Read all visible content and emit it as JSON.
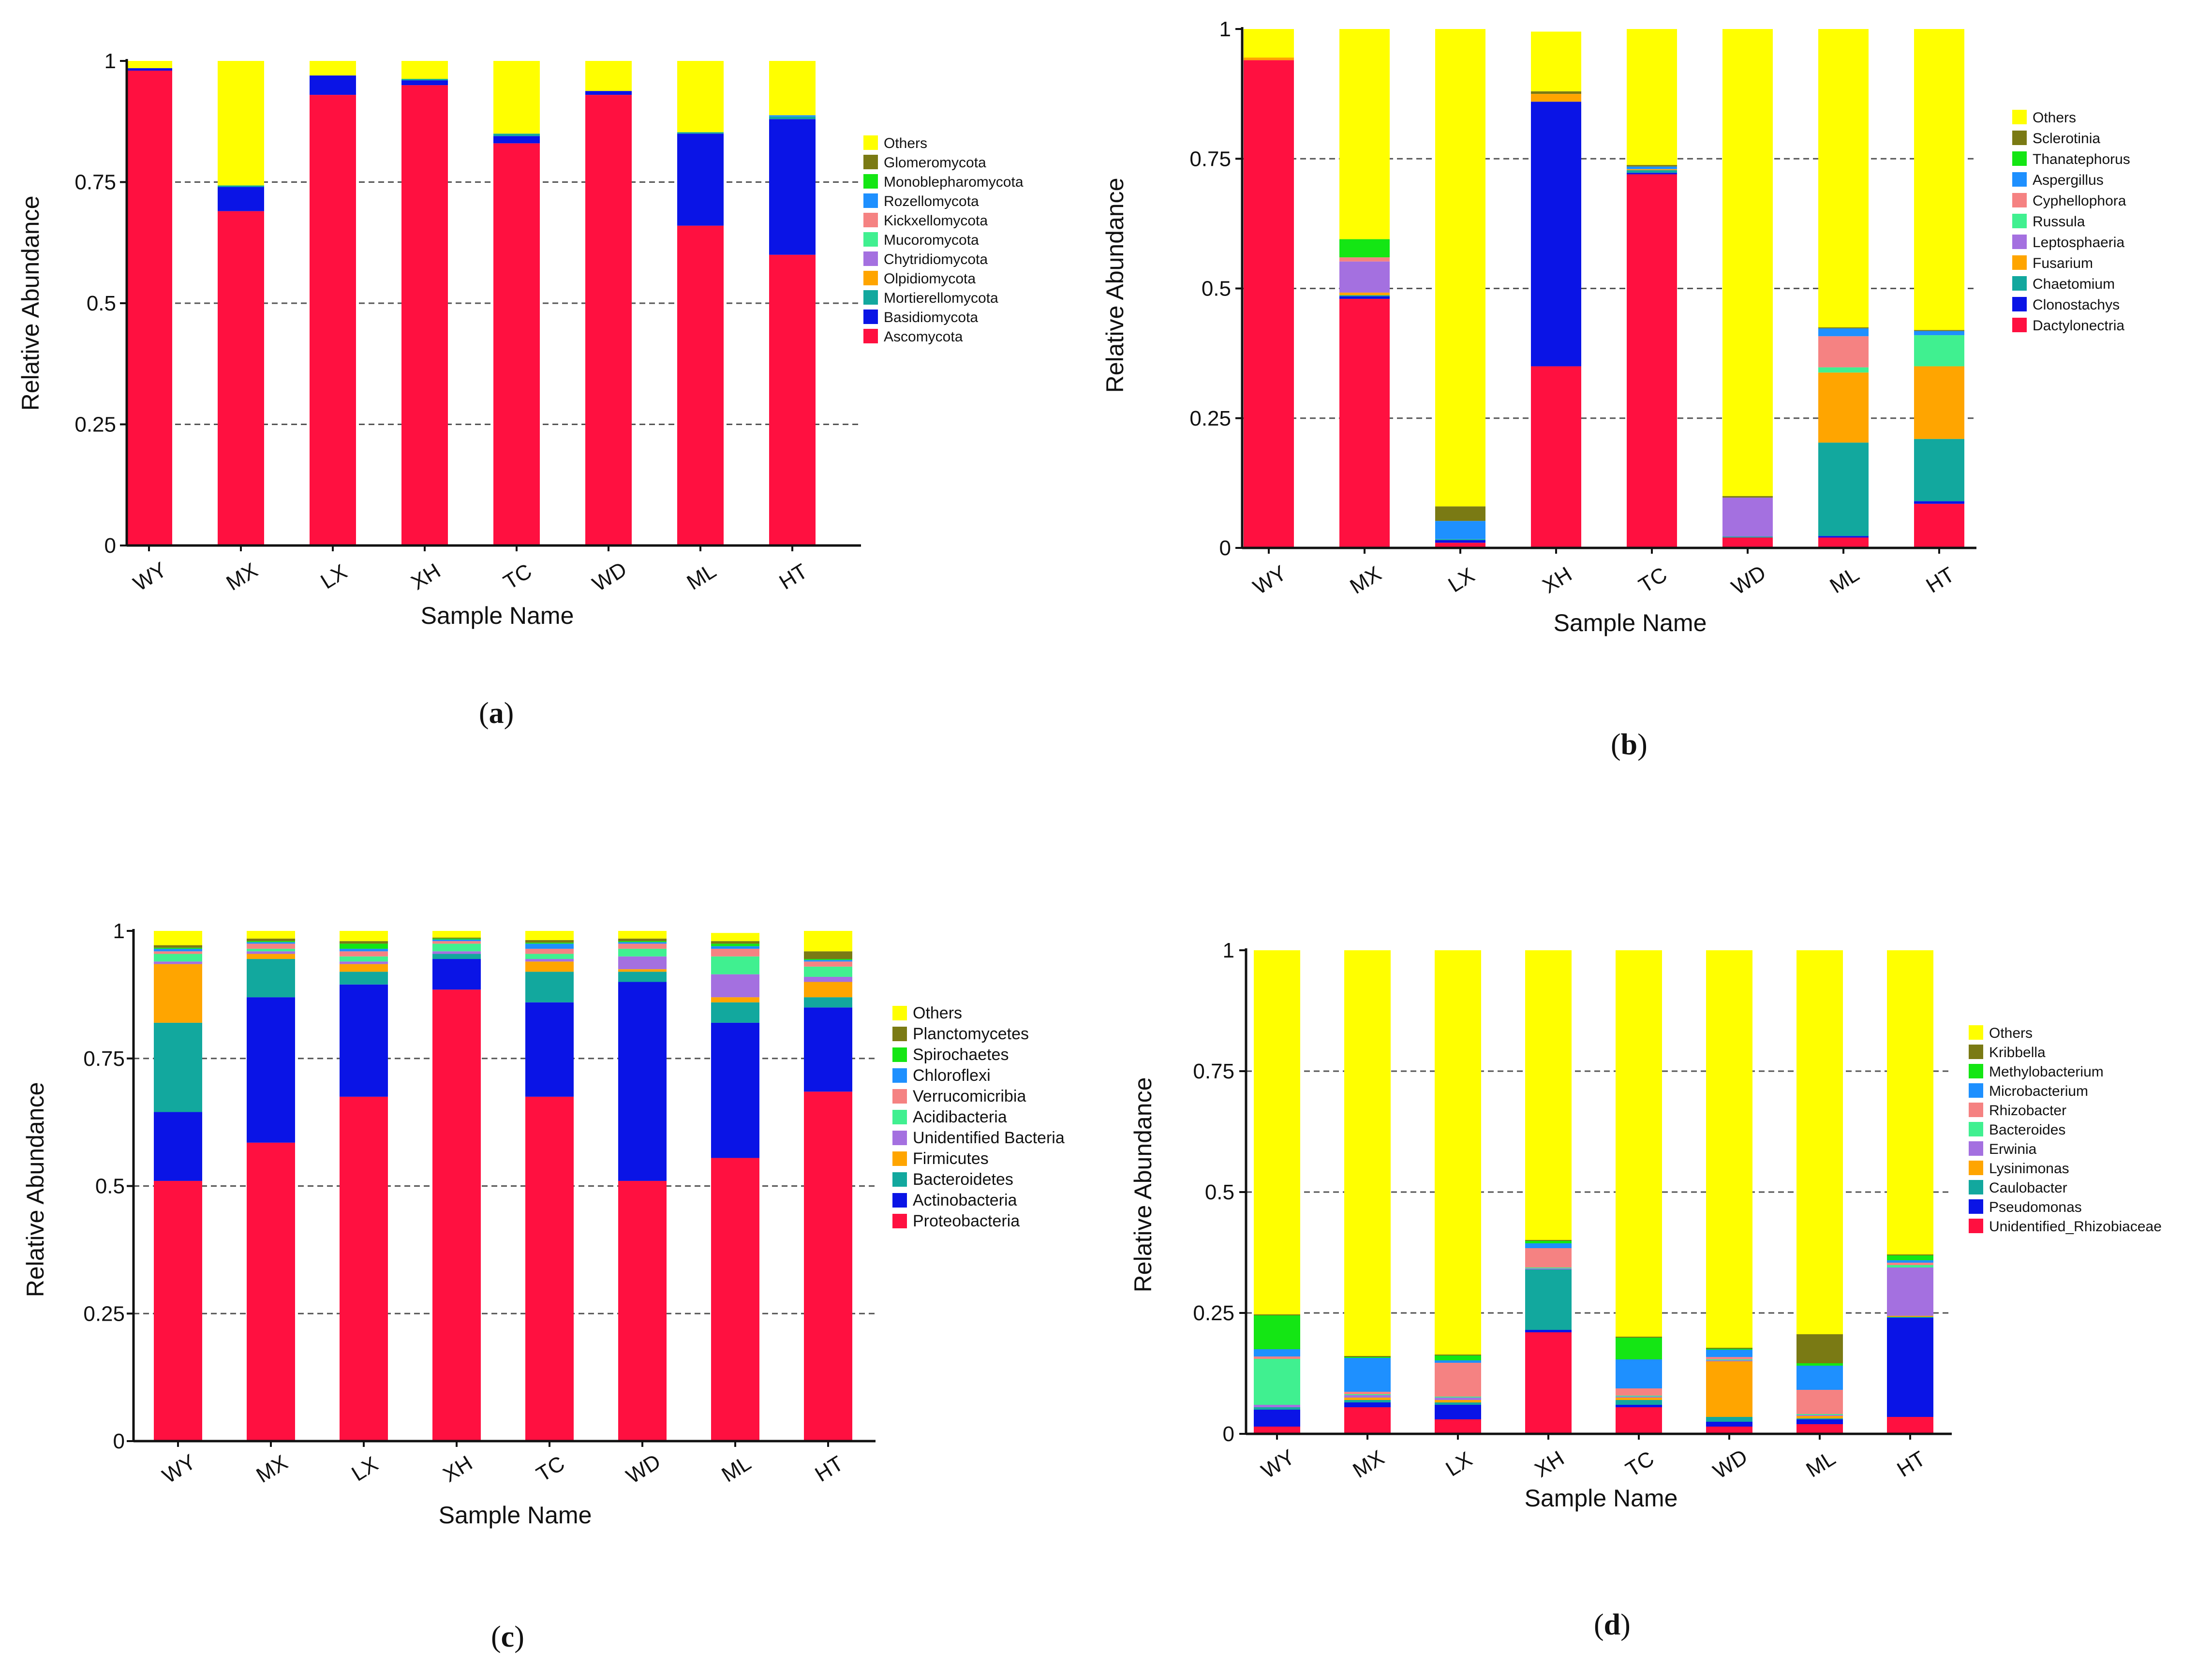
{
  "captions": [
    "(a)",
    "(b)",
    "(c)",
    "(d)"
  ],
  "caption_letters": [
    "a",
    "b",
    "c",
    "d"
  ],
  "chart_data": [
    {
      "type": "bar",
      "stacked": true,
      "panel": "a",
      "title": "",
      "xlabel": "Sample Name",
      "ylabel": "Relative Abundance",
      "ylim": [
        0,
        1
      ],
      "yticks": [
        "0",
        "0.25",
        "0.5",
        "0.75",
        "1"
      ],
      "categories": [
        "WY",
        "MX",
        "LX",
        "XH",
        "TC",
        "WD",
        "ML",
        "HT"
      ],
      "colors": {
        "Ascomycota": "#ff1040",
        "Basidiomycota": "#0a14e6",
        "Mortierellomycota": "#12a89e",
        "Olpidiomycota": "#ffa500",
        "Chytridiomycota": "#a470e0",
        "Mucoromycota": "#40f090",
        "Kickxellomycota": "#f58282",
        "Rozellomycota": "#1e90ff",
        "Monoblepharomycota": "#14e614",
        "Glomeromycota": "#7a7a14",
        "Others": "#ffff00"
      },
      "legend": [
        "Others",
        "Glomeromycota",
        "Monoblepharomycota",
        "Rozellomycota",
        "Kickxellomycota",
        "Mucoromycota",
        "Chytridiomycota",
        "Olpidiomycota",
        "Mortierellomycota",
        "Basidiomycota",
        "Ascomycota"
      ],
      "series": [
        {
          "name": "Ascomycota",
          "values": [
            0.98,
            0.69,
            0.93,
            0.95,
            0.83,
            0.93,
            0.66,
            0.6
          ]
        },
        {
          "name": "Basidiomycota",
          "values": [
            0.005,
            0.05,
            0.04,
            0.01,
            0.015,
            0.008,
            0.19,
            0.28
          ]
        },
        {
          "name": "Mortierellomycota",
          "values": [
            0,
            0.003,
            0,
            0.003,
            0.005,
            0,
            0.003,
            0.005
          ]
        },
        {
          "name": "Rozellomycota",
          "values": [
            0,
            0,
            0,
            0,
            0,
            0,
            0,
            0.003
          ]
        },
        {
          "name": "Others",
          "values": [
            0.015,
            0.257,
            0.03,
            0.037,
            0.15,
            0.062,
            0.147,
            0.112
          ]
        }
      ]
    },
    {
      "type": "bar",
      "stacked": true,
      "panel": "b",
      "title": "",
      "xlabel": "Sample Name",
      "ylabel": "Relative Abundance",
      "ylim": [
        0,
        1
      ],
      "yticks": [
        "0",
        "0.25",
        "0.5",
        "0.75",
        "1"
      ],
      "categories": [
        "WY",
        "MX",
        "LX",
        "XH",
        "TC",
        "WD",
        "ML",
        "HT"
      ],
      "colors": {
        "Dactylonectria": "#ff1040",
        "Clonostachys": "#0a14e6",
        "Chaetomium": "#12a89e",
        "Fusarium": "#ffa500",
        "Leptosphaeria": "#a470e0",
        "Russula": "#40f090",
        "Cyphellophora": "#f58282",
        "Aspergillus": "#1e90ff",
        "Thanatephorus": "#14e614",
        "Sclerotinia": "#7a7a14",
        "Others": "#ffff00"
      },
      "legend": [
        "Others",
        "Sclerotinia",
        "Thanatephorus",
        "Aspergillus",
        "Cyphellophora",
        "Russula",
        "Leptosphaeria",
        "Fusarium",
        "Chaetomium",
        "Clonostachys",
        "Dactylonectria"
      ],
      "series": [
        {
          "name": "Dactylonectria",
          "values": [
            0.94,
            0.48,
            0.01,
            0.35,
            0.72,
            0.02,
            0.02,
            0.085
          ]
        },
        {
          "name": "Clonostachys",
          "values": [
            0,
            0.005,
            0.005,
            0.51,
            0.003,
            0,
            0.003,
            0.005
          ]
        },
        {
          "name": "Chaetomium",
          "values": [
            0,
            0.002,
            0.002,
            0,
            0.005,
            0.002,
            0.18,
            0.12
          ]
        },
        {
          "name": "Fusarium",
          "values": [
            0.005,
            0.005,
            0,
            0.015,
            0.002,
            0,
            0.135,
            0.14
          ]
        },
        {
          "name": "Leptosphaeria",
          "values": [
            0,
            0.06,
            0,
            0,
            0,
            0.075,
            0,
            0
          ]
        },
        {
          "name": "Russula",
          "values": [
            0,
            0,
            0,
            0,
            0,
            0,
            0.01,
            0.06
          ]
        },
        {
          "name": "Cyphellophora",
          "values": [
            0,
            0.008,
            0,
            0,
            0,
            0,
            0.06,
            0
          ]
        },
        {
          "name": "Aspergillus",
          "values": [
            0,
            0,
            0.035,
            0,
            0.005,
            0,
            0.015,
            0.008
          ]
        },
        {
          "name": "Thanatephorus",
          "values": [
            0,
            0.035,
            0,
            0,
            0,
            0,
            0,
            0
          ]
        },
        {
          "name": "Sclerotinia",
          "values": [
            0,
            0,
            0.028,
            0.005,
            0.003,
            0.003,
            0.002,
            0.002
          ]
        },
        {
          "name": "Others",
          "values": [
            0.055,
            0.405,
            0.92,
            0.115,
            0.262,
            0.9,
            0.575,
            0.58
          ]
        }
      ]
    },
    {
      "type": "bar",
      "stacked": true,
      "panel": "c",
      "title": "",
      "xlabel": "Sample Name",
      "ylabel": "Relative Abundance",
      "ylim": [
        0,
        1
      ],
      "yticks": [
        "0",
        "0.25",
        "0.5",
        "0.75",
        "1"
      ],
      "categories": [
        "WY",
        "MX",
        "LX",
        "XH",
        "TC",
        "WD",
        "ML",
        "HT"
      ],
      "colors": {
        "Proteobacteria": "#ff1040",
        "Actinobacteria": "#0a14e6",
        "Bacteroidetes": "#12a89e",
        "Firmicutes": "#ffa500",
        "Unidentified Bacteria": "#a470e0",
        "Acidibacteria": "#40f090",
        "Verrucomicribia": "#f58282",
        "Chloroflexi": "#1e90ff",
        "Spirochaetes": "#14e614",
        "Planctomycetes": "#7a7a14",
        "Others": "#ffff00"
      },
      "legend": [
        "Others",
        "Planctomycetes",
        "Spirochaetes",
        "Chloroflexi",
        "Verrucomicribia",
        "Acidibacteria",
        "Unidentified Bacteria",
        "Firmicutes",
        "Bacteroidetes",
        "Actinobacteria",
        "Proteobacteria"
      ],
      "series": [
        {
          "name": "Proteobacteria",
          "values": [
            0.51,
            0.585,
            0.675,
            0.885,
            0.675,
            0.51,
            0.555,
            0.685
          ]
        },
        {
          "name": "Actinobacteria",
          "values": [
            0.135,
            0.285,
            0.22,
            0.06,
            0.185,
            0.39,
            0.265,
            0.165
          ]
        },
        {
          "name": "Bacteroidetes",
          "values": [
            0.175,
            0.075,
            0.025,
            0.01,
            0.06,
            0.02,
            0.04,
            0.02
          ]
        },
        {
          "name": "Firmicutes",
          "values": [
            0.115,
            0.01,
            0.015,
            0,
            0.02,
            0.005,
            0.01,
            0.03
          ]
        },
        {
          "name": "Unidentified Bacteria",
          "values": [
            0.005,
            0.005,
            0.005,
            0.005,
            0.005,
            0.025,
            0.045,
            0.01
          ]
        },
        {
          "name": "Acidibacteria",
          "values": [
            0.015,
            0.005,
            0.01,
            0.015,
            0.01,
            0.015,
            0.035,
            0.02
          ]
        },
        {
          "name": "Verrucomicribia",
          "values": [
            0.005,
            0.01,
            0.01,
            0.005,
            0.01,
            0.01,
            0.015,
            0.01
          ]
        },
        {
          "name": "Chloroflexi",
          "values": [
            0.005,
            0.003,
            0.005,
            0.003,
            0.01,
            0.003,
            0.005,
            0.003
          ]
        },
        {
          "name": "Spirochaetes",
          "values": [
            0.002,
            0.002,
            0.01,
            0.002,
            0.002,
            0.002,
            0.005,
            0.002
          ]
        },
        {
          "name": "Planctomycetes",
          "values": [
            0.005,
            0.005,
            0.005,
            0.002,
            0.005,
            0.005,
            0.005,
            0.015
          ]
        },
        {
          "name": "Others",
          "values": [
            0.028,
            0.015,
            0.02,
            0.013,
            0.018,
            0.015,
            0.016,
            0.04
          ]
        }
      ]
    },
    {
      "type": "bar",
      "stacked": true,
      "panel": "d",
      "title": "",
      "xlabel": "Sample Name",
      "ylabel": "Relative Abundance",
      "ylim": [
        0,
        1
      ],
      "yticks": [
        "0",
        "0.25",
        "0.5",
        "0.75",
        "1"
      ],
      "categories": [
        "WY",
        "MX",
        "LX",
        "XH",
        "TC",
        "WD",
        "ML",
        "HT"
      ],
      "colors": {
        "Unidentified_Rhizobiaceae": "#ff1040",
        "Pseudomonas": "#0a14e6",
        "Caulobacter": "#12a89e",
        "Lysinimonas": "#ffa500",
        "Erwinia": "#a470e0",
        "Bacteroides": "#40f090",
        "Rhizobacter": "#f58282",
        "Microbacterium": "#1e90ff",
        "Methylobacterium": "#14e614",
        "Kribbella": "#7a7a14",
        "Others": "#ffff00"
      },
      "legend": [
        "Others",
        "Kribbella",
        "Methylobacterium",
        "Microbacterium",
        "Rhizobacter",
        "Bacteroides",
        "Erwinia",
        "Lysinimonas",
        "Caulobacter",
        "Pseudomonas",
        "Unidentified_Rhizobiaceae"
      ],
      "series": [
        {
          "name": "Unidentified_Rhizobiaceae",
          "values": [
            0.015,
            0.055,
            0.03,
            0.21,
            0.055,
            0.015,
            0.02,
            0.035
          ]
        },
        {
          "name": "Pseudomonas",
          "values": [
            0.035,
            0.01,
            0.03,
            0.005,
            0.005,
            0.01,
            0.01,
            0.205
          ]
        },
        {
          "name": "Caulobacter",
          "values": [
            0.005,
            0.005,
            0.005,
            0.125,
            0.01,
            0.01,
            0.002,
            0.002
          ]
        },
        {
          "name": "Lysinimonas",
          "values": [
            0,
            0.005,
            0.005,
            0,
            0.005,
            0.115,
            0.005,
            0.002
          ]
        },
        {
          "name": "Erwinia",
          "values": [
            0.005,
            0.005,
            0.005,
            0.002,
            0.002,
            0.002,
            0.002,
            0.1
          ]
        },
        {
          "name": "Bacteroides",
          "values": [
            0.095,
            0.002,
            0.002,
            0.002,
            0.002,
            0.002,
            0.002,
            0.005
          ]
        },
        {
          "name": "Rhizobacter",
          "values": [
            0.005,
            0.005,
            0.07,
            0.04,
            0.015,
            0.005,
            0.05,
            0.005
          ]
        },
        {
          "name": "Microbacterium",
          "values": [
            0.015,
            0.07,
            0.005,
            0.01,
            0.06,
            0.015,
            0.05,
            0.005
          ]
        },
        {
          "name": "Methylobacterium",
          "values": [
            0.07,
            0.002,
            0.01,
            0.005,
            0.045,
            0.002,
            0.005,
            0.01
          ]
        },
        {
          "name": "Kribbella",
          "values": [
            0.002,
            0.002,
            0.002,
            0.002,
            0.002,
            0.002,
            0.06,
            0.002
          ]
        },
        {
          "name": "Others",
          "values": [
            0.753,
            0.839,
            0.836,
            0.599,
            0.799,
            0.822,
            0.794,
            0.629
          ]
        }
      ]
    }
  ]
}
